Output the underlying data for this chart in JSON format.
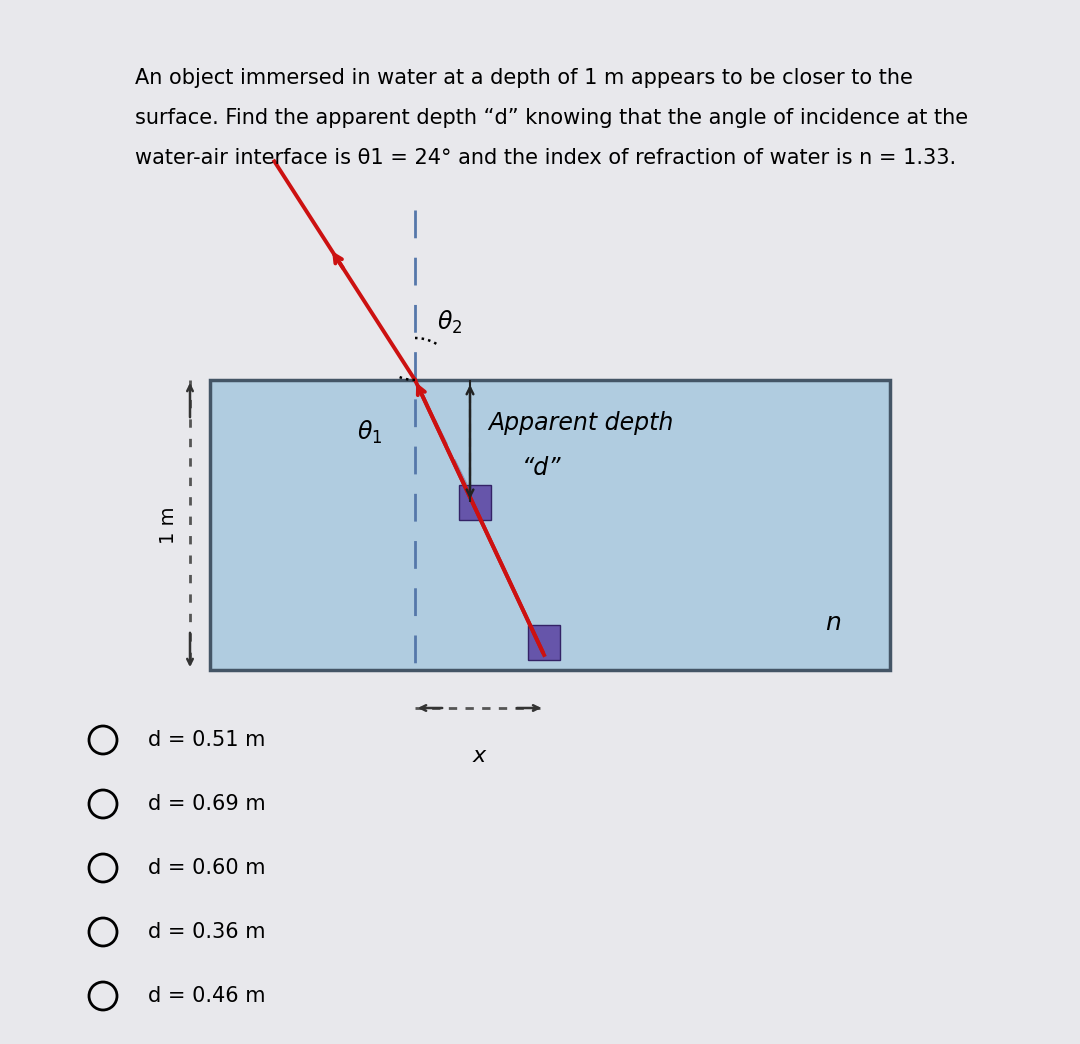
{
  "bg_color": "#c8c8cc",
  "panel_color": "#e8e8ec",
  "question_text_line1": "An object immersed in water at a depth of 1 m appears to be closer to the",
  "question_text_line2": "surface. Find the apparent depth “d” knowing that the angle of incidence at the",
  "question_text_line3": "water-air interface is θ1 = 24° and the index of refraction of water is n = 1.33.",
  "water_box_color": "#b0cce0",
  "water_box_edge_color": "#445566",
  "red_line_color": "#cc1111",
  "normal_dash_color": "#5577aa",
  "dashed_ray_color": "#8899bb",
  "object_square_color": "#6655aa",
  "arrow_color": "#222222",
  "dotted_brace_color": "#333333",
  "choices": [
    "d = 0.51 m",
    "d = 0.69 m",
    "d = 0.60 m",
    "d = 0.36 m",
    "d = 0.46 m"
  ],
  "theta1_deg": 24,
  "n_water": 1.33,
  "n_label": "n",
  "apparent_label_line1": "Apparent depth",
  "apparent_label_line2": "“d”"
}
